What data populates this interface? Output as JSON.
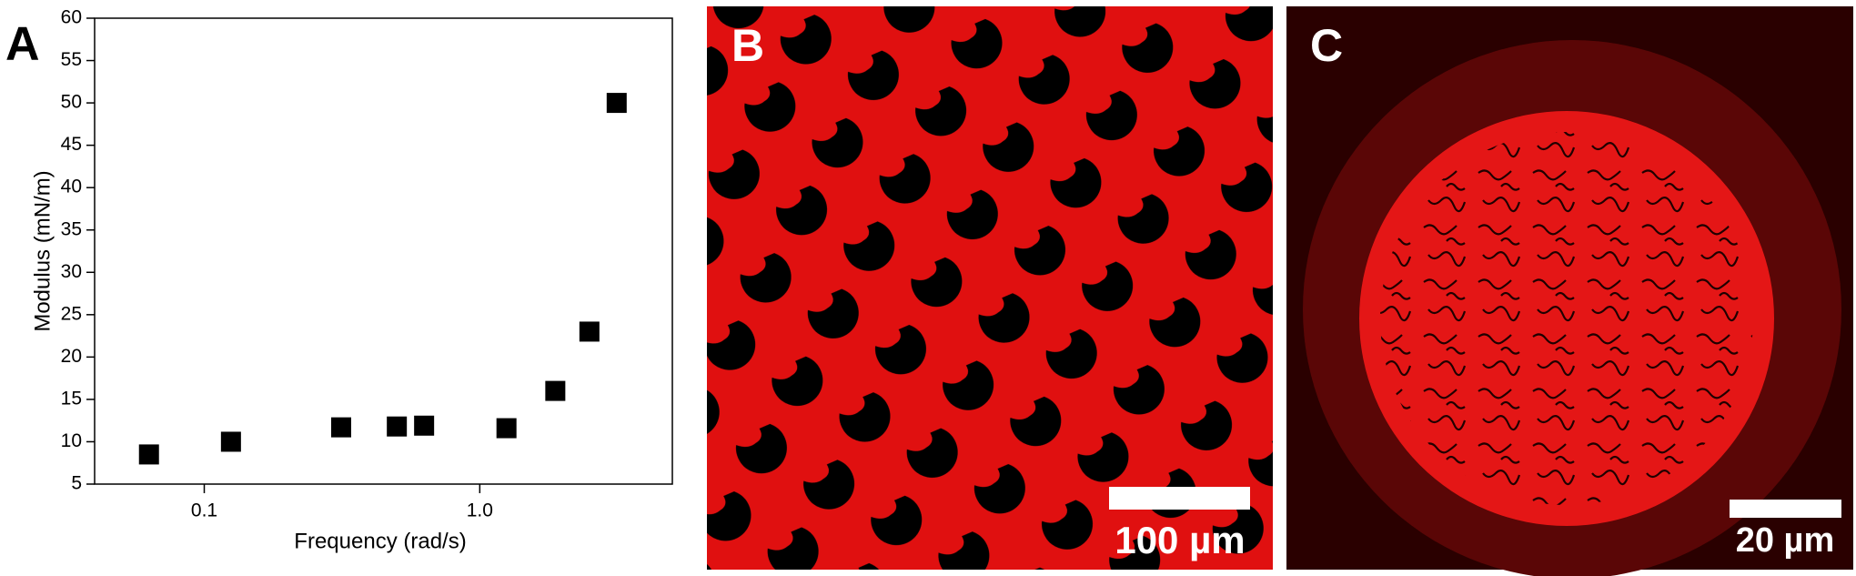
{
  "chart_data": {
    "type": "scatter",
    "panel_label": "A",
    "x_label": "Frequency (rad/s)",
    "y_label": "Modulus (mN/m)",
    "x": [
      0.063,
      0.125,
      0.314,
      0.5,
      0.628,
      1.25,
      1.88,
      2.5,
      3.14
    ],
    "values": [
      8.5,
      10,
      11.7,
      11.8,
      11.9,
      11.6,
      16,
      23,
      50
    ],
    "color": "#000000",
    "xscale": "log",
    "xlim": [
      0.04,
      5
    ],
    "xticks": [
      0.1,
      {
        "value": 1,
        "label": "1.0"
      }
    ],
    "ylim": [
      5,
      60
    ],
    "yticks": [
      5,
      10,
      15,
      20,
      25,
      30,
      35,
      40,
      45,
      50,
      55,
      60
    ]
  },
  "panels": [
    {
      "label": "B",
      "scale_bar": "100 µm"
    },
    {
      "label": "C",
      "scale_bar": "20 µm"
    }
  ]
}
